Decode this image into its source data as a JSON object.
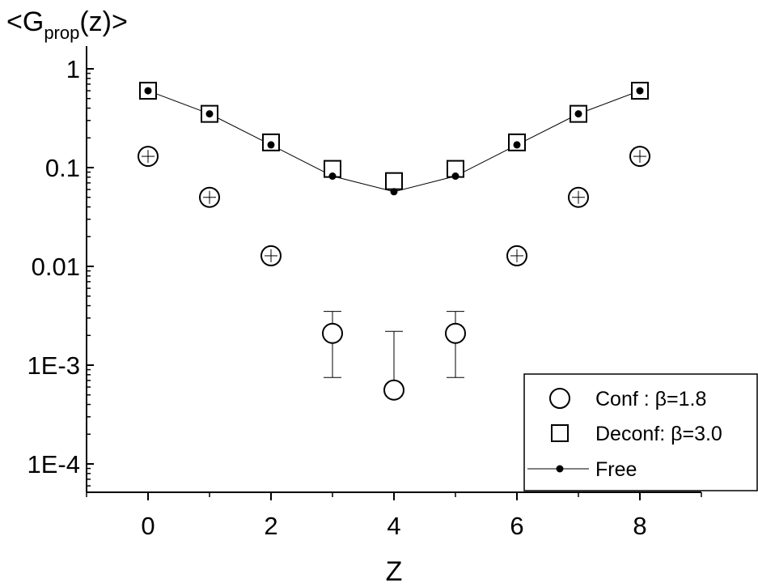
{
  "chart_data": {
    "type": "scatter",
    "title": "",
    "ylabel": {
      "base": "<G",
      "sub": "prop",
      "rest": "(z)>"
    },
    "xlabel": "Z",
    "yscale": "log",
    "ylim": [
      4e-05,
      1.5
    ],
    "xlim": [
      -0.9,
      9.9
    ],
    "xticks": [
      {
        "v": 0,
        "label": "0"
      },
      {
        "v": 2,
        "label": "2"
      },
      {
        "v": 4,
        "label": "4"
      },
      {
        "v": 6,
        "label": "6"
      },
      {
        "v": 8,
        "label": "8"
      }
    ],
    "yticks": [
      {
        "v": 0.0001,
        "label": "1E-4"
      },
      {
        "v": 0.001,
        "label": "1E-3"
      },
      {
        "v": 0.01,
        "label": "0.01"
      },
      {
        "v": 0.1,
        "label": "0.1"
      },
      {
        "v": 1,
        "label": "1"
      }
    ],
    "legend": {
      "placement": "bottom-right",
      "entries": [
        {
          "marker": "circle",
          "label": "Conf   : β=1.8"
        },
        {
          "marker": "square",
          "label": "Deconf: β=3.0"
        },
        {
          "marker": "line-dot",
          "label": "Free"
        }
      ]
    },
    "series": [
      {
        "marker": "circle",
        "x": [
          0,
          1,
          2,
          3,
          4,
          5,
          6,
          7,
          8
        ],
        "y": [
          0.13,
          0.05,
          0.0128,
          0.0021,
          0.00056,
          0.0021,
          0.0128,
          0.05,
          0.13
        ],
        "err_low": [
          null,
          null,
          null,
          0.00075,
          null,
          0.00075,
          null,
          null,
          null
        ],
        "err_high": [
          null,
          null,
          null,
          0.0035,
          0.0022,
          0.0035,
          null,
          null,
          null
        ]
      },
      {
        "marker": "square",
        "x": [
          0,
          1,
          2,
          3,
          4,
          5,
          6,
          7,
          8
        ],
        "y": [
          0.6,
          0.35,
          0.18,
          0.097,
          0.073,
          0.097,
          0.18,
          0.35,
          0.6
        ]
      },
      {
        "marker": "line-dot",
        "x": [
          0,
          1,
          2,
          3,
          4,
          5,
          6,
          7,
          8
        ],
        "y": [
          0.6,
          0.35,
          0.17,
          0.082,
          0.057,
          0.082,
          0.17,
          0.35,
          0.6
        ]
      }
    ]
  }
}
